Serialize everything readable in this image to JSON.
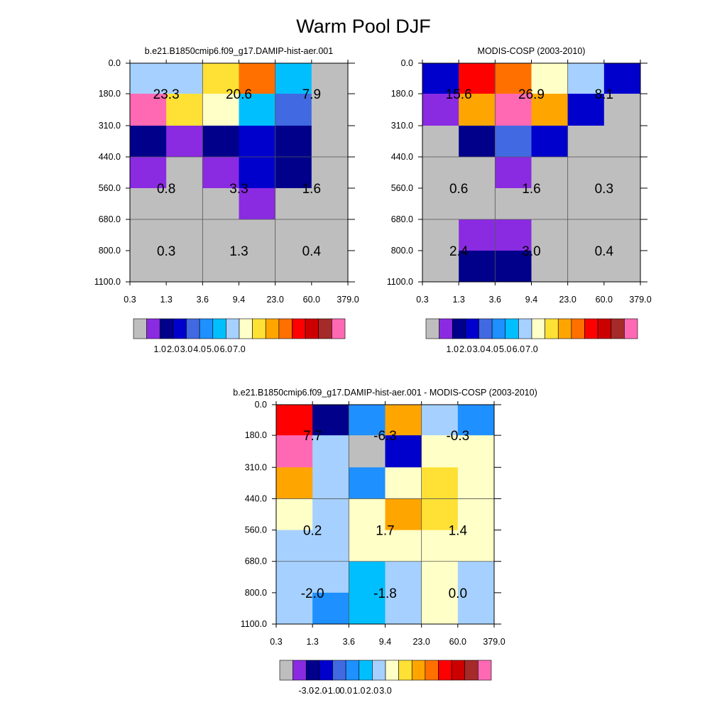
{
  "title": "Warm Pool DJF",
  "palette": {
    "gray": "#bebebe",
    "purple": "#8a2be2",
    "navy": "#00008b",
    "blue": "#0000cd",
    "royal": "#4169e1",
    "dodger": "#1e90ff",
    "sky": "#00bfff",
    "lightblue": "#a6d0ff",
    "cream": "#ffffc8",
    "yellow": "#ffe135",
    "orange": "#ffa500",
    "darkorange": "#ff7000",
    "red": "#ff0000",
    "darkred": "#cd0000",
    "brown": "#a52a2a",
    "pink": "#ff69b4"
  },
  "chart_data": [
    {
      "type": "heatmap",
      "title": "b.e21.B1850cmip6.f09_g17.DAMIP-hist-aer.001",
      "x_ticks": [
        "0.3",
        "1.3",
        "3.6",
        "9.4",
        "23.0",
        "60.0",
        "379.0"
      ],
      "y_ticks": [
        "0.0",
        "180.0",
        "310.0",
        "440.0",
        "560.0",
        "680.0",
        "800.0",
        "1100.0"
      ],
      "cells": [
        [
          "lightblue",
          "lightblue",
          "yellow",
          "darkorange",
          "sky",
          "gray"
        ],
        [
          "pink",
          "yellow",
          "cream",
          "sky",
          "royal",
          "gray"
        ],
        [
          "navy",
          "purple",
          "navy",
          "blue",
          "navy",
          "gray"
        ],
        [
          "purple",
          "gray",
          "purple",
          "blue",
          "navy",
          "gray"
        ],
        [
          "gray",
          "gray",
          "gray",
          "purple",
          "gray",
          "gray"
        ],
        [
          "gray",
          "gray",
          "gray",
          "gray",
          "gray",
          "gray"
        ],
        [
          "gray",
          "gray",
          "gray",
          "gray",
          "gray",
          "gray"
        ]
      ],
      "labels": [
        [
          "23.3",
          "20.6",
          "7.9"
        ],
        [
          "0.8",
          "3.3",
          "1.6"
        ],
        [
          "0.3",
          "1.3",
          "0.4"
        ]
      ],
      "colorbar": {
        "colors": [
          "gray",
          "purple",
          "navy",
          "blue",
          "royal",
          "dodger",
          "sky",
          "lightblue",
          "cream",
          "yellow",
          "orange",
          "darkorange",
          "red",
          "darkred",
          "brown",
          "pink"
        ],
        "labels": [
          "1.0",
          "2.0",
          "3.0",
          "4.0",
          "5.0",
          "6.0",
          "7.0"
        ]
      }
    },
    {
      "type": "heatmap",
      "title": "MODIS-COSP (2003-2010)",
      "x_ticks": [
        "0.3",
        "1.3",
        "3.6",
        "9.4",
        "23.0",
        "60.0",
        "379.0"
      ],
      "y_ticks": [
        "0.0",
        "180.0",
        "310.0",
        "440.0",
        "560.0",
        "680.0",
        "800.0",
        "1100.0"
      ],
      "cells": [
        [
          "blue",
          "red",
          "darkorange",
          "cream",
          "lightblue",
          "blue"
        ],
        [
          "purple",
          "orange",
          "pink",
          "orange",
          "blue",
          "gray"
        ],
        [
          "gray",
          "navy",
          "royal",
          "blue",
          "gray",
          "gray"
        ],
        [
          "gray",
          "gray",
          "purple",
          "gray",
          "gray",
          "gray"
        ],
        [
          "gray",
          "gray",
          "gray",
          "gray",
          "gray",
          "gray"
        ],
        [
          "gray",
          "purple",
          "purple",
          "gray",
          "gray",
          "gray"
        ],
        [
          "gray",
          "navy",
          "navy",
          "gray",
          "gray",
          "gray"
        ]
      ],
      "labels": [
        [
          "15.6",
          "26.9",
          "8.1"
        ],
        [
          "0.6",
          "1.6",
          "0.3"
        ],
        [
          "2.4",
          "3.0",
          "0.4"
        ]
      ],
      "colorbar": {
        "colors": [
          "gray",
          "purple",
          "navy",
          "blue",
          "royal",
          "dodger",
          "sky",
          "lightblue",
          "cream",
          "yellow",
          "orange",
          "darkorange",
          "red",
          "darkred",
          "brown",
          "pink"
        ],
        "labels": [
          "1.0",
          "2.0",
          "3.0",
          "4.0",
          "5.0",
          "6.0",
          "7.0"
        ]
      }
    },
    {
      "type": "heatmap",
      "title": "b.e21.B1850cmip6.f09_g17.DAMIP-hist-aer.001 - MODIS-COSP (2003-2010)",
      "x_ticks": [
        "0.3",
        "1.3",
        "3.6",
        "9.4",
        "23.0",
        "60.0",
        "379.0"
      ],
      "y_ticks": [
        "0.0",
        "180.0",
        "310.0",
        "440.0",
        "560.0",
        "680.0",
        "800.0",
        "1100.0"
      ],
      "cells": [
        [
          "red",
          "navy",
          "dodger",
          "orange",
          "lightblue",
          "dodger"
        ],
        [
          "pink",
          "lightblue",
          "gray",
          "blue",
          "cream",
          "cream"
        ],
        [
          "orange",
          "lightblue",
          "dodger",
          "cream",
          "yellow",
          "cream"
        ],
        [
          "cream",
          "lightblue",
          "cream",
          "orange",
          "yellow",
          "cream"
        ],
        [
          "lightblue",
          "lightblue",
          "cream",
          "cream",
          "cream",
          "cream"
        ],
        [
          "lightblue",
          "lightblue",
          "sky",
          "lightblue",
          "cream",
          "lightblue"
        ],
        [
          "lightblue",
          "dodger",
          "sky",
          "lightblue",
          "cream",
          "lightblue"
        ]
      ],
      "labels": [
        [
          "7.7",
          "-6.3",
          "-0.3"
        ],
        [
          "0.2",
          "1.7",
          "1.4"
        ],
        [
          "-2.0",
          "-1.8",
          "0.0"
        ]
      ],
      "colorbar": {
        "colors": [
          "gray",
          "purple",
          "navy",
          "blue",
          "royal",
          "dodger",
          "sky",
          "lightblue",
          "cream",
          "yellow",
          "orange",
          "darkorange",
          "red",
          "darkred",
          "brown",
          "pink"
        ],
        "labels": [
          "-3.0",
          "-2.0",
          "-1.0",
          "0.0",
          "1.0",
          "2.0",
          "3.0"
        ]
      }
    }
  ]
}
